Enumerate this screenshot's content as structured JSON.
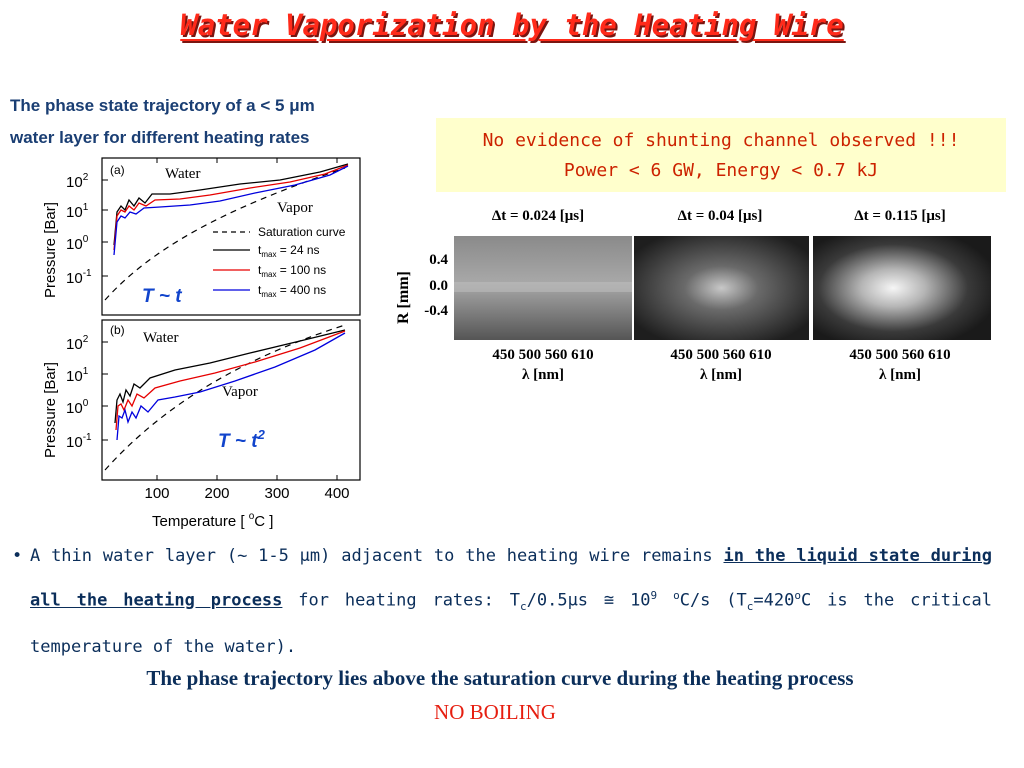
{
  "title": "Water Vaporization by the Heating Wire",
  "caption": {
    "line1": "The phase state trajectory of a < 5 μm",
    "line2": "water layer for different heating rates"
  },
  "notice": {
    "line1": "No evidence of shunting channel observed !!!",
    "line2": "Power < 6 GW, Energy < 0.7 kJ"
  },
  "figure": {
    "panel_a": {
      "tag": "(a)",
      "water": "Water",
      "vapor": "Vapor",
      "relation": "T ~ t"
    },
    "panel_b": {
      "tag": "(b)",
      "water": "Water",
      "vapor": "Vapor",
      "relation_base": "T ~ t",
      "relation_exp": "2"
    },
    "ylabel": "Pressure [Bar]",
    "y_ticks": [
      "2",
      "1",
      "0",
      "-1"
    ],
    "y_tick_base": "10",
    "xlabel_pre": "Temperature [ ",
    "xlabel_sup": "o",
    "xlabel_post": "C ]",
    "x_ticks": [
      "100",
      "200",
      "300",
      "400"
    ],
    "legend": {
      "saturation": "Saturation curve",
      "t_symbol": "t",
      "t_sub": "max",
      "entries": [
        "=   24  ns",
        "=  100 ns",
        "=  400 ns"
      ],
      "colors": [
        "#000000",
        "#e60000",
        "#0000dd"
      ]
    }
  },
  "spectra": {
    "panels": [
      {
        "dt": "Δt = 0.024 [μs]"
      },
      {
        "dt": "Δt = 0.04 [μs]"
      },
      {
        "dt": "Δt = 0.115 [μs]"
      }
    ],
    "r_label": "R [mm]",
    "r_ticks": [
      "0.4",
      "0.0",
      "-0.4"
    ],
    "wavelengths": "450 500 560 610",
    "lambda_label": "λ [nm]"
  },
  "bullet": {
    "pre": "A thin water layer (~ 1-5 μm) adjacent to the heating wire remains ",
    "underlined": "in the liquid state during all the heating process",
    "mid": " for heating rates: T",
    "sub_c": "c",
    "rate": "/0.5μs ≅ 10",
    "exp": "9",
    "deg": "o",
    "unit": "C/s (T",
    "sub_c2": "c",
    "eq": "=420",
    "deg2": "o",
    "post": "C is the critical temperature of the water)."
  },
  "conclusion": "The phase trajectory lies above the saturation curve during the heating process",
  "verdict": "NO BOILING"
}
